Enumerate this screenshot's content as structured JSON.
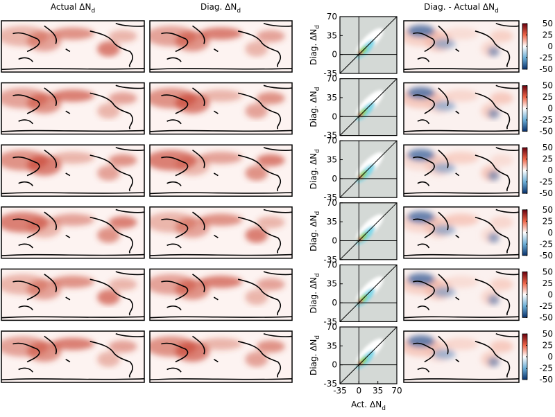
{
  "column_titles": [
    "Actual ΔN_d",
    "Diag. ΔN_d",
    "Diag. - Actual ΔN_d"
  ],
  "chart_data": [
    {
      "type": "scatter",
      "ylabel": "Diag. ΔN_d",
      "xlim": [
        -35,
        70
      ],
      "ylim": [
        -35,
        70
      ],
      "yticks": [
        -35,
        0,
        35,
        70
      ]
    },
    {
      "type": "scatter",
      "ylabel": "Diag. ΔN_d",
      "xlim": [
        -35,
        70
      ],
      "ylim": [
        -35,
        70
      ],
      "yticks": [
        -35,
        0,
        35,
        70
      ]
    },
    {
      "type": "scatter",
      "ylabel": "Diag. ΔN_d",
      "xlim": [
        -35,
        70
      ],
      "ylim": [
        -35,
        70
      ],
      "yticks": [
        -35,
        0,
        35,
        70
      ]
    },
    {
      "type": "scatter",
      "ylabel": "Diag. ΔN_d",
      "xlim": [
        -35,
        70
      ],
      "ylim": [
        -35,
        70
      ],
      "yticks": [
        -35,
        0,
        35,
        70
      ]
    },
    {
      "type": "scatter",
      "ylabel": "Diag. ΔN_d",
      "xlim": [
        -35,
        70
      ],
      "ylim": [
        -35,
        70
      ],
      "yticks": [
        -35,
        0,
        35,
        70
      ]
    },
    {
      "type": "scatter",
      "ylabel": "Diag. ΔN_d",
      "xlabel": "Act. ΔN_d",
      "xlim": [
        -35,
        70
      ],
      "ylim": [
        -35,
        70
      ],
      "yticks": [
        -35,
        0,
        35,
        70
      ],
      "xticks": [
        -35,
        0,
        35,
        70
      ]
    }
  ],
  "colorbars": [
    {
      "lim": [
        -50,
        50
      ],
      "ticks": [
        -50,
        -25,
        0,
        25,
        50
      ]
    },
    {
      "lim": [
        -50,
        50
      ],
      "ticks": [
        -50,
        -25,
        0,
        25,
        50
      ]
    },
    {
      "lim": [
        -50,
        50
      ],
      "ticks": [
        -50,
        -25,
        0,
        25,
        50
      ]
    },
    {
      "lim": [
        -50,
        50
      ],
      "ticks": [
        -50,
        -25,
        0,
        25,
        50
      ]
    },
    {
      "lim": [
        -50,
        50
      ],
      "ticks": [
        -50,
        -25,
        0,
        25,
        50
      ]
    },
    {
      "lim": [
        -50,
        50
      ],
      "ticks": [
        -50,
        -25,
        0,
        25,
        50
      ]
    }
  ]
}
